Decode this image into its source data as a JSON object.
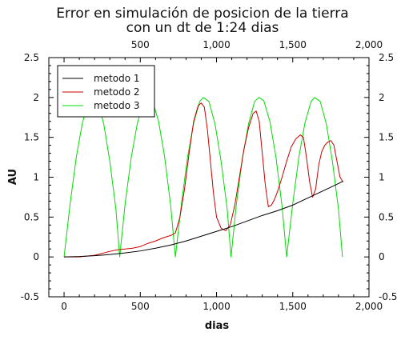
{
  "chart_data": {
    "type": "line",
    "title_line1": "Error en simulación de posicion de la tierra",
    "title_line2": "con un dt de 1:24 dias",
    "xlabel": "dias",
    "ylabel": "AU",
    "xlim": [
      -100,
      2000
    ],
    "ylim": [
      -0.5,
      2.5
    ],
    "x_ticks": [
      0,
      500,
      1000,
      1500,
      2000
    ],
    "x_tick_labels": [
      "0",
      "500",
      "1,000",
      "1,500",
      "2,000"
    ],
    "y_ticks": [
      -0.5,
      0,
      0.5,
      1,
      1.5,
      2,
      2.5
    ],
    "y_tick_labels": [
      "-0.5",
      "0",
      "0.5",
      "1",
      "1.5",
      "2",
      "2.5"
    ],
    "grid": false,
    "legend_position": "top-left",
    "series": [
      {
        "name": "metodo 1",
        "color": "#000000",
        "x": [
          0,
          100,
          200,
          300,
          400,
          500,
          600,
          700,
          800,
          900,
          1000,
          1100,
          1200,
          1300,
          1400,
          1500,
          1600,
          1700,
          1800,
          1830
        ],
        "y": [
          0.0,
          0.005,
          0.015,
          0.03,
          0.05,
          0.075,
          0.11,
          0.15,
          0.2,
          0.26,
          0.32,
          0.38,
          0.45,
          0.52,
          0.58,
          0.65,
          0.74,
          0.83,
          0.92,
          0.95
        ]
      },
      {
        "name": "metodo 2",
        "color": "#cc0000",
        "x": [
          0,
          100,
          200,
          300,
          350,
          400,
          450,
          500,
          550,
          600,
          650,
          700,
          730,
          760,
          790,
          820,
          850,
          880,
          900,
          920,
          940,
          960,
          980,
          1000,
          1030,
          1060,
          1090,
          1120,
          1150,
          1180,
          1210,
          1240,
          1260,
          1280,
          1300,
          1320,
          1340,
          1360,
          1380,
          1400,
          1430,
          1460,
          1490,
          1520,
          1550,
          1570,
          1590,
          1610,
          1630,
          1650,
          1670,
          1690,
          1710,
          1730,
          1750,
          1770,
          1790,
          1810,
          1830
        ],
        "y": [
          0.0,
          0.0,
          0.02,
          0.07,
          0.09,
          0.1,
          0.11,
          0.13,
          0.17,
          0.2,
          0.24,
          0.27,
          0.3,
          0.5,
          0.85,
          1.3,
          1.7,
          1.9,
          1.93,
          1.88,
          1.6,
          1.2,
          0.8,
          0.5,
          0.36,
          0.33,
          0.4,
          0.65,
          1.0,
          1.35,
          1.62,
          1.8,
          1.83,
          1.7,
          1.3,
          0.9,
          0.63,
          0.65,
          0.72,
          0.82,
          1.0,
          1.2,
          1.38,
          1.48,
          1.53,
          1.5,
          1.25,
          0.95,
          0.75,
          0.85,
          1.15,
          1.32,
          1.4,
          1.44,
          1.46,
          1.4,
          1.2,
          1.0,
          0.94
        ]
      },
      {
        "name": "metodo 3",
        "color": "#00dd00",
        "x": [
          0,
          40,
          80,
          120,
          160,
          183,
          220,
          260,
          300,
          340,
          365,
          400,
          440,
          480,
          520,
          548,
          580,
          620,
          660,
          700,
          730,
          770,
          810,
          850,
          890,
          913,
          950,
          990,
          1030,
          1070,
          1095,
          1130,
          1170,
          1210,
          1250,
          1278,
          1310,
          1350,
          1390,
          1430,
          1460,
          1500,
          1540,
          1580,
          1620,
          1643,
          1680,
          1720,
          1760,
          1800,
          1826
        ],
        "y": [
          0.0,
          0.67,
          1.25,
          1.68,
          1.94,
          2.0,
          1.95,
          1.67,
          1.2,
          0.6,
          0.0,
          0.66,
          1.24,
          1.67,
          1.95,
          2.0,
          1.96,
          1.7,
          1.25,
          0.63,
          0.0,
          0.67,
          1.25,
          1.68,
          1.95,
          2.0,
          1.95,
          1.67,
          1.2,
          0.6,
          0.0,
          0.66,
          1.24,
          1.67,
          1.95,
          2.0,
          1.96,
          1.7,
          1.25,
          0.63,
          0.0,
          0.67,
          1.25,
          1.68,
          1.95,
          2.0,
          1.95,
          1.67,
          1.2,
          0.6,
          0.0
        ]
      }
    ]
  }
}
